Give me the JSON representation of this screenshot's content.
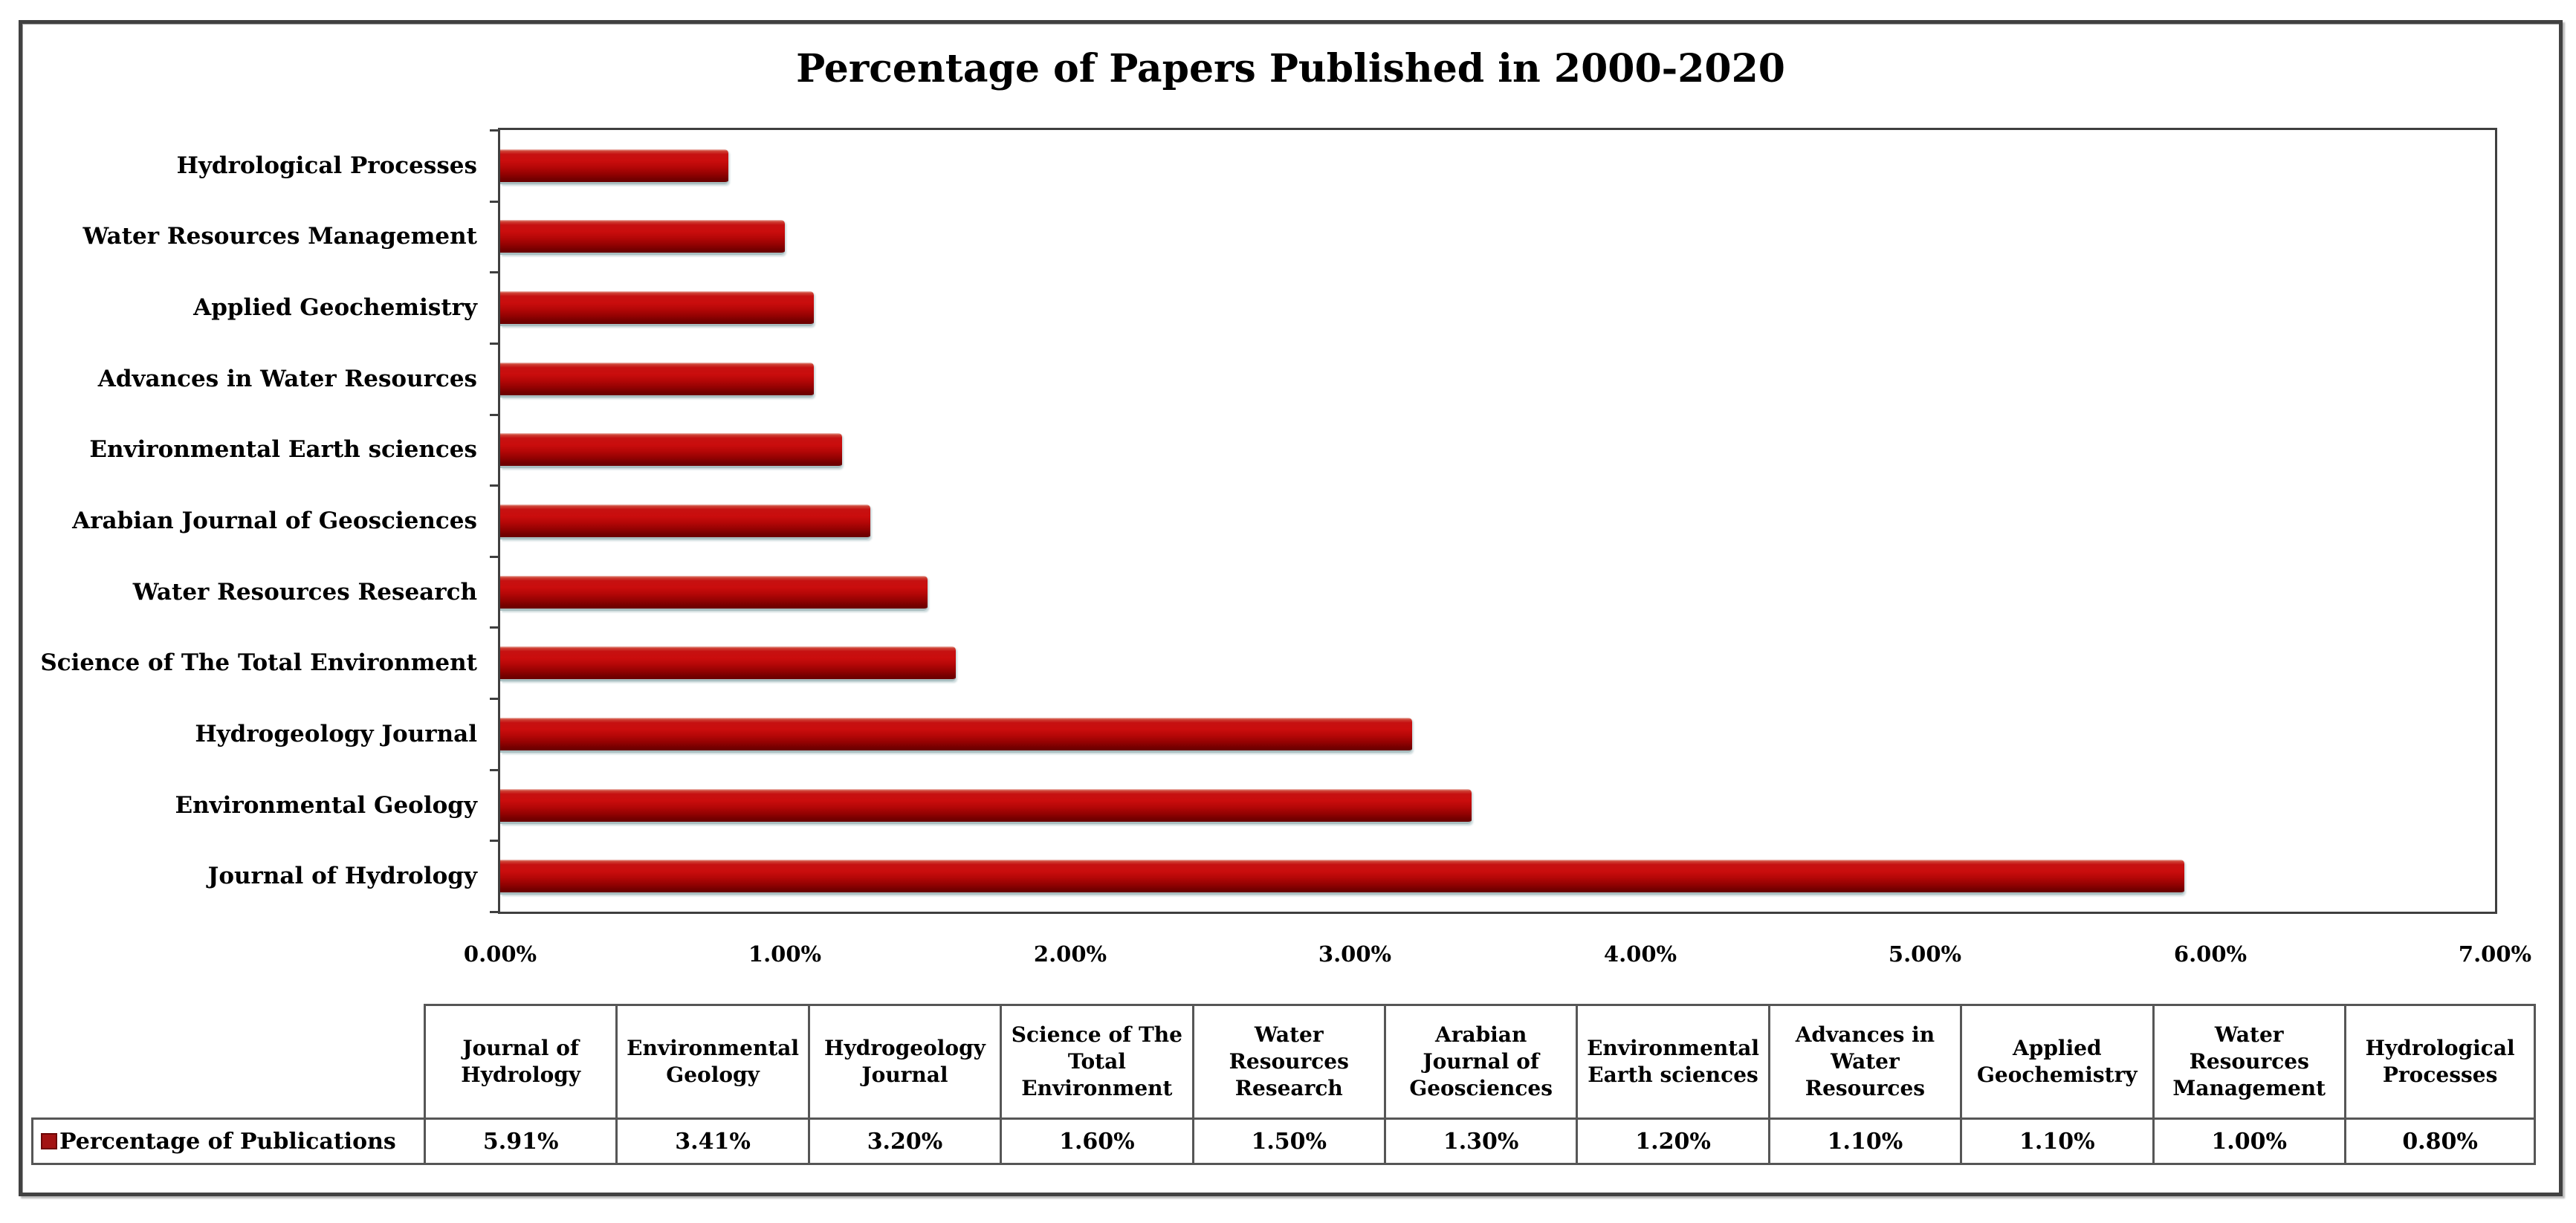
{
  "chart_data": {
    "type": "bar",
    "orientation": "horizontal",
    "title": "Percentage of Papers Published in 2000-2020",
    "category_order": "top-to-bottom",
    "categories": [
      "Hydrological Processes",
      "Water Resources Management",
      "Applied Geochemistry",
      "Advances in Water Resources",
      "Environmental Earth sciences",
      "Arabian Journal of Geosciences",
      "Water Resources Research",
      "Science of The Total Environment",
      "Hydrogeology Journal",
      "Environmental Geology",
      "Journal of Hydrology"
    ],
    "series": [
      {
        "name": "Percentage of Publications",
        "values": [
          0.8,
          1.0,
          1.1,
          1.1,
          1.2,
          1.3,
          1.5,
          1.6,
          3.2,
          3.41,
          5.91
        ]
      }
    ],
    "x_ticks": [
      "0.00%",
      "1.00%",
      "2.00%",
      "3.00%",
      "4.00%",
      "5.00%",
      "6.00%",
      "7.00%"
    ],
    "xlim": [
      0,
      7
    ],
    "xlabel": "",
    "ylabel": "",
    "grid": false,
    "legend_position": "data-table-left",
    "bar_color": "#C00000"
  },
  "table": {
    "legend_label": "Percentage of Publications",
    "columns": [
      "Journal of Hydrology",
      "Environmental Geology",
      "Hydrogeology Journal",
      "Science of The Total Environment",
      "Water Resources Research",
      "Arabian Journal of Geosciences",
      "Environmental Earth sciences",
      "Advances in Water Resources",
      "Applied Geochemistry",
      "Water Resources Management",
      "Hydrological Processes"
    ],
    "values": [
      "5.91%",
      "3.41%",
      "3.20%",
      "1.60%",
      "1.50%",
      "1.30%",
      "1.20%",
      "1.10%",
      "1.10%",
      "1.00%",
      "0.80%"
    ]
  },
  "colors": {
    "bar": "#C00000",
    "legend_key": "#A31313",
    "text": "#000000",
    "axis_line": "#3F3F3F",
    "table_line": "#565656"
  }
}
